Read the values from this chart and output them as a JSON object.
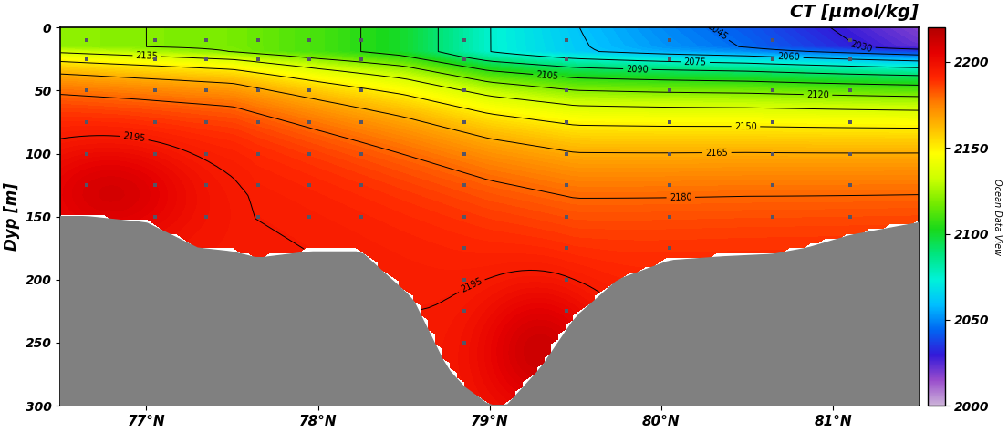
{
  "title": "CT [μmol/kg]",
  "xlabel_ticks": [
    "77°N",
    "78°N",
    "79°N",
    "80°N",
    "81°N"
  ],
  "xlabel_vals": [
    77,
    78,
    79,
    80,
    81
  ],
  "ylabel": "Dyp [m]",
  "xlim": [
    76.5,
    81.5
  ],
  "ylim": [
    300,
    0
  ],
  "cbar_ticks": [
    2000,
    2050,
    2100,
    2150,
    2200
  ],
  "vmin": 2000,
  "vmax": 2220,
  "contour_levels": [
    2030,
    2045,
    2060,
    2075,
    2090,
    2105,
    2120,
    2135,
    2150,
    2165,
    2180,
    2195
  ],
  "background_color": "#ffffff",
  "seafloor_color": "#808080",
  "bathy_lats": [
    76.5,
    76.65,
    77.0,
    77.3,
    77.5,
    77.65,
    77.95,
    78.25,
    78.55,
    78.75,
    78.85,
    79.0,
    79.1,
    79.3,
    79.5,
    79.75,
    80.05,
    80.35,
    80.65,
    80.85,
    81.1,
    81.5
  ],
  "bathy_depths": [
    150,
    150,
    155,
    175,
    178,
    183,
    178,
    178,
    215,
    270,
    285,
    300,
    300,
    270,
    230,
    200,
    185,
    182,
    180,
    175,
    165,
    155
  ],
  "dot_lats": [
    76.65,
    77.05,
    77.35,
    77.65,
    77.95,
    78.25,
    78.85,
    79.45,
    80.05,
    80.65,
    81.1
  ],
  "dot_depths": [
    10,
    25,
    50,
    75,
    100,
    125,
    150,
    175,
    200,
    225,
    250
  ]
}
